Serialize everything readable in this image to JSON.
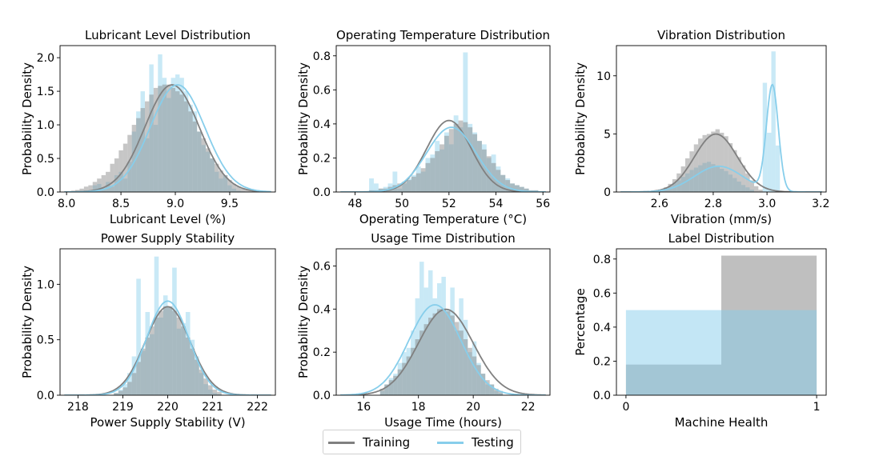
{
  "colors": {
    "training": "#808080",
    "testing": "#87ceeb"
  },
  "legend": {
    "training_label": "Training",
    "testing_label": "Testing"
  },
  "chart_data": [
    {
      "type": "histogram",
      "title": "Lubricant Level Distribution",
      "xlabel": "Lubricant Level (%)",
      "ylabel": "Probability Density",
      "xlim": [
        7.94,
        9.92
      ],
      "ylim": [
        0,
        2.18
      ],
      "xticks": [
        8.0,
        8.5,
        9.0,
        9.5
      ],
      "xtick_labels": [
        "8.0",
        "8.5",
        "9.0",
        "9.5"
      ],
      "yticks": [
        0,
        0.5,
        1.0,
        1.5,
        2.0
      ],
      "ytick_labels": [
        "0.0",
        "0.5",
        "1.0",
        "1.5",
        "2.0"
      ],
      "kde": {
        "training": {
          "mean": 8.97,
          "sd": 0.25
        },
        "testing": {
          "mean": 9.02,
          "sd": 0.25
        }
      },
      "bin_edges_start": 8.0,
      "bin_width": 0.04,
      "training_hist": [
        0.01,
        0.02,
        0.03,
        0.05,
        0.08,
        0.1,
        0.15,
        0.2,
        0.25,
        0.3,
        0.42,
        0.5,
        0.62,
        0.72,
        0.85,
        1.0,
        1.1,
        1.25,
        1.35,
        1.45,
        1.55,
        1.58,
        1.6,
        1.6,
        1.55,
        1.5,
        1.45,
        1.35,
        1.2,
        1.05,
        0.9,
        0.8,
        0.65,
        0.5,
        0.42,
        0.32,
        0.25,
        0.18,
        0.12,
        0.08,
        0.05,
        0.03,
        0.02
      ],
      "testing_hist": [
        0,
        0,
        0,
        0,
        0,
        0,
        0.1,
        0.12,
        0.05,
        0.15,
        0.08,
        0.25,
        0.3,
        0.2,
        0.45,
        0.9,
        1.2,
        1.5,
        0.8,
        1.9,
        1.0,
        2.05,
        1.7,
        1.4,
        1.7,
        1.75,
        1.7,
        1.5,
        1.3,
        1.2,
        0.9,
        0.7,
        0.6,
        0.5,
        0.3,
        0.2,
        0.25,
        0.1,
        0.05,
        0.02,
        0.01,
        0,
        0
      ]
    },
    {
      "type": "histogram",
      "title": "Operating Temperature Distribution",
      "xlabel": "Operating Temperature (°C)",
      "ylabel": "Probability Density",
      "xlim": [
        47.2,
        56.3
      ],
      "ylim": [
        0,
        0.86
      ],
      "xticks": [
        48,
        50,
        52,
        54,
        56
      ],
      "xtick_labels": [
        "48",
        "50",
        "52",
        "54",
        "56"
      ],
      "yticks": [
        0,
        0.2,
        0.4,
        0.6,
        0.8
      ],
      "ytick_labels": [
        "0.0",
        "0.2",
        "0.4",
        "0.6",
        "0.8"
      ],
      "kde": {
        "training": {
          "mean": 52.0,
          "sd": 0.95
        },
        "testing": {
          "mean": 52.1,
          "sd": 1.05
        }
      },
      "bin_edges_start": 48.6,
      "bin_width": 0.2,
      "training_hist": [
        0.01,
        0.01,
        0.02,
        0.02,
        0.03,
        0.04,
        0.05,
        0.06,
        0.07,
        0.09,
        0.11,
        0.14,
        0.17,
        0.2,
        0.24,
        0.28,
        0.33,
        0.37,
        0.4,
        0.42,
        0.41,
        0.38,
        0.34,
        0.3,
        0.25,
        0.21,
        0.17,
        0.13,
        0.1,
        0.07,
        0.05,
        0.04,
        0.03,
        0.02,
        0.01,
        0.01
      ],
      "testing_hist": [
        0.08,
        0.05,
        0.02,
        0.03,
        0.05,
        0.12,
        0.02,
        0.05,
        0.08,
        0.1,
        0.15,
        0.12,
        0.2,
        0.22,
        0.3,
        0.25,
        0.35,
        0.28,
        0.45,
        0.38,
        0.82,
        0.4,
        0.35,
        0.3,
        0.28,
        0.2,
        0.22,
        0.15,
        0.1,
        0.08,
        0.05,
        0.04,
        0.03,
        0.02,
        0.01,
        0.01
      ]
    },
    {
      "type": "histogram",
      "title": "Vibration Distribution",
      "xlabel": "Vibration (mm/s)",
      "ylabel": "Probability Density",
      "xlim": [
        2.44,
        3.22
      ],
      "ylim": [
        0,
        12.6
      ],
      "xticks": [
        2.6,
        2.8,
        3.0,
        3.2
      ],
      "xtick_labels": [
        "2.6",
        "2.8",
        "3.0",
        "3.2"
      ],
      "yticks": [
        0,
        5,
        10
      ],
      "ytick_labels": [
        "0",
        "5",
        "10"
      ],
      "kde": {
        "training": {
          "mean": 2.81,
          "sd": 0.08
        },
        "testing_mixture": [
          {
            "mean": 2.82,
            "sd": 0.09,
            "weight": 0.5
          },
          {
            "mean": 3.02,
            "sd": 0.022,
            "weight": 0.5
          }
        ]
      },
      "bin_edges_start": 2.6,
      "bin_width": 0.016,
      "training_hist": [
        0.2,
        0.4,
        0.7,
        1.1,
        1.6,
        2.2,
        2.9,
        3.5,
        4.1,
        4.6,
        4.9,
        5.0,
        5.2,
        5.4,
        5.1,
        4.8,
        4.2,
        3.6,
        3.0,
        2.3,
        1.6,
        1.0,
        0.5,
        0.2
      ],
      "testing_hist": [
        0.1,
        0.3,
        0.5,
        0.8,
        1.0,
        1.3,
        1.6,
        1.9,
        2.1,
        2.3,
        2.5,
        2.6,
        2.4,
        2.2,
        2.0,
        1.8,
        1.5,
        1.2,
        0.9,
        0.6,
        0.4,
        0.2,
        0,
        0,
        9.4,
        5.1,
        12.1,
        4.0
      ]
    },
    {
      "type": "histogram",
      "title": "Power Supply Stability",
      "xlabel": "Power Supply Stability (V)",
      "ylabel": "Probability Density",
      "xlim": [
        217.6,
        222.4
      ],
      "ylim": [
        0,
        1.32
      ],
      "xticks": [
        218,
        219,
        220,
        221,
        222
      ],
      "xtick_labels": [
        "218",
        "219",
        "220",
        "221",
        "222"
      ],
      "yticks": [
        0,
        0.5,
        1.0
      ],
      "ytick_labels": [
        "0.0",
        "0.5",
        "1.0"
      ],
      "kde": {
        "training": {
          "mean": 220.0,
          "sd": 0.5
        },
        "testing": {
          "mean": 220.0,
          "sd": 0.47
        }
      },
      "bin_edges_start": 218.8,
      "bin_width": 0.1,
      "training_hist": [
        0.02,
        0.04,
        0.07,
        0.12,
        0.2,
        0.3,
        0.42,
        0.52,
        0.62,
        0.7,
        0.76,
        0.8,
        0.8,
        0.76,
        0.7,
        0.62,
        0.52,
        0.42,
        0.32,
        0.23,
        0.15,
        0.09,
        0.05,
        0.03
      ],
      "testing_hist": [
        0.02,
        0.05,
        0.1,
        0.2,
        0.35,
        1.05,
        0.4,
        0.75,
        0.55,
        1.25,
        0.7,
        0.9,
        0.8,
        1.15,
        0.6,
        0.65,
        0.75,
        0.5,
        0.35,
        0.2,
        0.1,
        0.05,
        0.02,
        0.01
      ]
    },
    {
      "type": "histogram",
      "title": "Usage Time Distribution",
      "xlabel": "Usage Time (hours)",
      "ylabel": "Probability Density",
      "xlim": [
        15.0,
        22.8
      ],
      "ylim": [
        0,
        0.68
      ],
      "xticks": [
        16,
        18,
        20,
        22
      ],
      "xtick_labels": [
        "16",
        "18",
        "20",
        "22"
      ],
      "yticks": [
        0,
        0.2,
        0.4,
        0.6
      ],
      "ytick_labels": [
        "0.0",
        "0.2",
        "0.4",
        "0.6"
      ],
      "kde": {
        "training": {
          "mean": 19.0,
          "sd": 1.0
        },
        "testing": {
          "mean": 18.6,
          "sd": 0.95
        }
      },
      "bin_edges_start": 16.6,
      "bin_width": 0.16,
      "training_hist": [
        0.03,
        0.05,
        0.07,
        0.09,
        0.12,
        0.15,
        0.18,
        0.22,
        0.26,
        0.3,
        0.33,
        0.36,
        0.38,
        0.4,
        0.4,
        0.39,
        0.37,
        0.34,
        0.3,
        0.26,
        0.22,
        0.18,
        0.14,
        0.1,
        0.07,
        0.05,
        0.03,
        0.02
      ],
      "testing_hist": [
        0.02,
        0.05,
        0.08,
        0.1,
        0.15,
        0.2,
        0.22,
        0.3,
        0.45,
        0.62,
        0.5,
        0.58,
        0.45,
        0.52,
        0.55,
        0.4,
        0.5,
        0.3,
        0.45,
        0.35,
        0.2,
        0.25,
        0.15,
        0.1,
        0.05,
        0.05,
        0.02,
        0.01
      ]
    },
    {
      "type": "bar",
      "title": "Label Distribution",
      "xlabel": "Machine Health",
      "ylabel": "Percentage",
      "xlim": [
        -0.05,
        1.05
      ],
      "ylim": [
        0,
        0.86
      ],
      "xticks": [
        0,
        1
      ],
      "xtick_labels": [
        "0",
        "1"
      ],
      "yticks": [
        0,
        0.2,
        0.4,
        0.6,
        0.8
      ],
      "ytick_labels": [
        "0.0",
        "0.2",
        "0.4",
        "0.6",
        "0.8"
      ],
      "bins": [
        [
          0,
          0.5
        ],
        [
          0.5,
          1
        ]
      ],
      "series": [
        {
          "name": "Training",
          "values": [
            0.18,
            0.82
          ]
        },
        {
          "name": "Testing",
          "values": [
            0.5,
            0.5
          ]
        }
      ]
    }
  ]
}
